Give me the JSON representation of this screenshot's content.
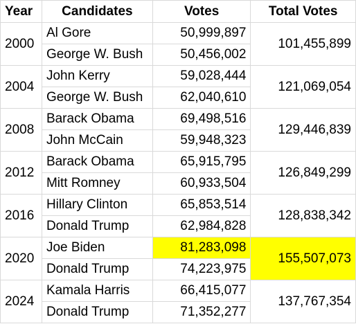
{
  "headers": {
    "year": "Year",
    "candidates": "Candidates",
    "votes": "Votes",
    "total_votes": "Total Votes"
  },
  "highlight_color": "#ffff00",
  "elections": [
    {
      "year": "2000",
      "total_votes": "101,455,899",
      "rows": [
        {
          "candidate": "Al Gore",
          "votes": "50,999,897"
        },
        {
          "candidate": "George W. Bush",
          "votes": "50,456,002"
        }
      ]
    },
    {
      "year": "2004",
      "total_votes": "121,069,054",
      "rows": [
        {
          "candidate": "John Kerry",
          "votes": "59,028,444"
        },
        {
          "candidate": "George W. Bush",
          "votes": "62,040,610"
        }
      ]
    },
    {
      "year": "2008",
      "total_votes": "129,446,839",
      "rows": [
        {
          "candidate": "Barack Obama",
          "votes": "69,498,516"
        },
        {
          "candidate": "John McCain",
          "votes": "59,948,323"
        }
      ]
    },
    {
      "year": "2012",
      "total_votes": "126,849,299",
      "rows": [
        {
          "candidate": "Barack Obama",
          "votes": "65,915,795"
        },
        {
          "candidate": "Mitt Romney",
          "votes": "60,933,504"
        }
      ]
    },
    {
      "year": "2016",
      "total_votes": "128,838,342",
      "rows": [
        {
          "candidate": "Hillary Clinton",
          "votes": "65,853,514"
        },
        {
          "candidate": "Donald Trump",
          "votes": "62,984,828"
        }
      ]
    },
    {
      "year": "2020",
      "total_votes": "155,507,073",
      "rows": [
        {
          "candidate": "Joe Biden",
          "votes": "81,283,098"
        },
        {
          "candidate": "Donald Trump",
          "votes": "74,223,975"
        }
      ]
    },
    {
      "year": "2024",
      "total_votes": "137,767,354",
      "rows": [
        {
          "candidate": "Kamala Harris",
          "votes": "66,415,077"
        },
        {
          "candidate": "Donald Trump",
          "votes": "71,352,277"
        }
      ]
    }
  ]
}
